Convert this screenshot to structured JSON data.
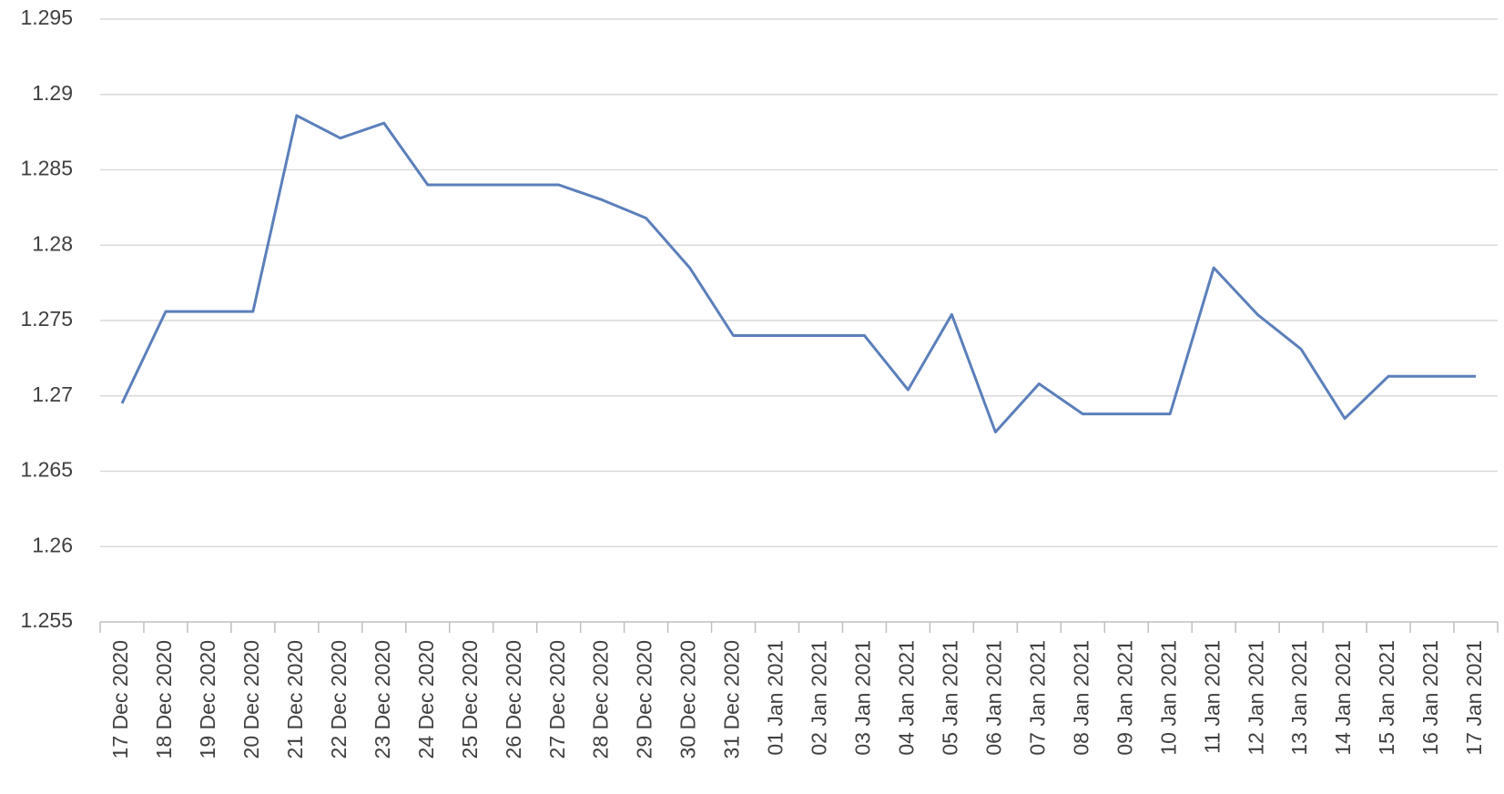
{
  "chart_data": {
    "type": "line",
    "categories": [
      "17 Dec 2020",
      "18 Dec 2020",
      "19 Dec 2020",
      "20 Dec 2020",
      "21 Dec 2020",
      "22 Dec 2020",
      "23 Dec 2020",
      "24 Dec 2020",
      "25 Dec 2020",
      "26 Dec 2020",
      "27 Dec 2020",
      "28 Dec 2020",
      "29 Dec 2020",
      "30 Dec 2020",
      "31 Dec 2020",
      "01 Jan 2021",
      "02 Jan 2021",
      "03 Jan 2021",
      "04 Jan 2021",
      "05 Jan 2021",
      "06 Jan 2021",
      "07 Jan 2021",
      "08 Jan 2021",
      "09 Jan 2021",
      "10 Jan 2021",
      "11 Jan 2021",
      "12 Jan 2021",
      "13 Jan 2021",
      "14 Jan 2021",
      "15 Jan 2021",
      "16 Jan 2021",
      "17 Jan 2021"
    ],
    "values": [
      1.2695,
      1.2756,
      1.2756,
      1.2756,
      1.2886,
      1.2871,
      1.2881,
      1.284,
      1.284,
      1.284,
      1.284,
      1.283,
      1.2818,
      1.2785,
      1.274,
      1.274,
      1.274,
      1.274,
      1.2704,
      1.2754,
      1.2676,
      1.2708,
      1.2688,
      1.2688,
      1.2688,
      1.2785,
      1.2754,
      1.2731,
      1.2685,
      1.2713,
      1.2713,
      1.2713
    ],
    "color": "#5b7fbb",
    "ylim": [
      1.255,
      1.295
    ],
    "yticks": [
      1.255,
      1.26,
      1.265,
      1.27,
      1.275,
      1.28,
      1.285,
      1.29,
      1.295
    ],
    "grid": true
  }
}
